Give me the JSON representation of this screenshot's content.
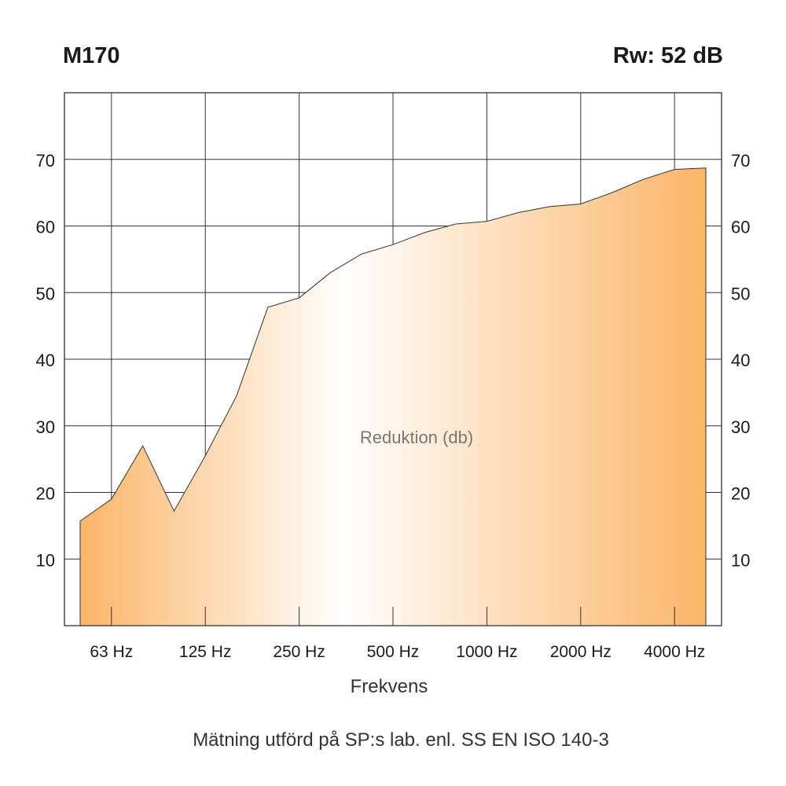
{
  "header": {
    "model": "M170",
    "rating": "Rw: 52 dB"
  },
  "footer": {
    "xlabel": "Frekvens",
    "caption": "Mätning utförd på SP:s lab. enl. SS EN ISO 140-3"
  },
  "colors": {
    "fill_edge": "#fbb567",
    "fill_center": "#ffffff",
    "grid": "#333333",
    "curve": "#333333",
    "annotation": "#777777"
  },
  "chart_data": {
    "type": "area",
    "title": "M170",
    "subtitle": "Rw: 52 dB",
    "xlabel": "Frekvens",
    "ylabel": "",
    "annotation": "Reduktion (db)",
    "ylim": [
      0,
      80
    ],
    "grid": true,
    "y_ticks": [
      10,
      20,
      30,
      40,
      50,
      60,
      70
    ],
    "y_axis_both_sides": true,
    "x_tick_labels": [
      "63 Hz",
      "125 Hz",
      "250 Hz",
      "500 Hz",
      "1000 Hz",
      "2000 Hz",
      "4000 Hz"
    ],
    "series": [
      {
        "x": [
          "50 Hz",
          "63 Hz",
          "80 Hz",
          "100 Hz",
          "125 Hz",
          "160 Hz",
          "200 Hz",
          "250 Hz",
          "315 Hz",
          "400 Hz",
          "500 Hz",
          "630 Hz",
          "800 Hz",
          "1000 Hz",
          "1250 Hz",
          "1600 Hz",
          "2000 Hz",
          "2500 Hz",
          "3150 Hz",
          "4000 Hz",
          "5000 Hz"
        ],
        "values": [
          15.7,
          19,
          27,
          17.2,
          25.5,
          34.5,
          47.8,
          49.2,
          53,
          55.8,
          57.2,
          59,
          60.3,
          60.7,
          62,
          62.9,
          63.3,
          65,
          67,
          68.5,
          68.7
        ]
      }
    ]
  }
}
